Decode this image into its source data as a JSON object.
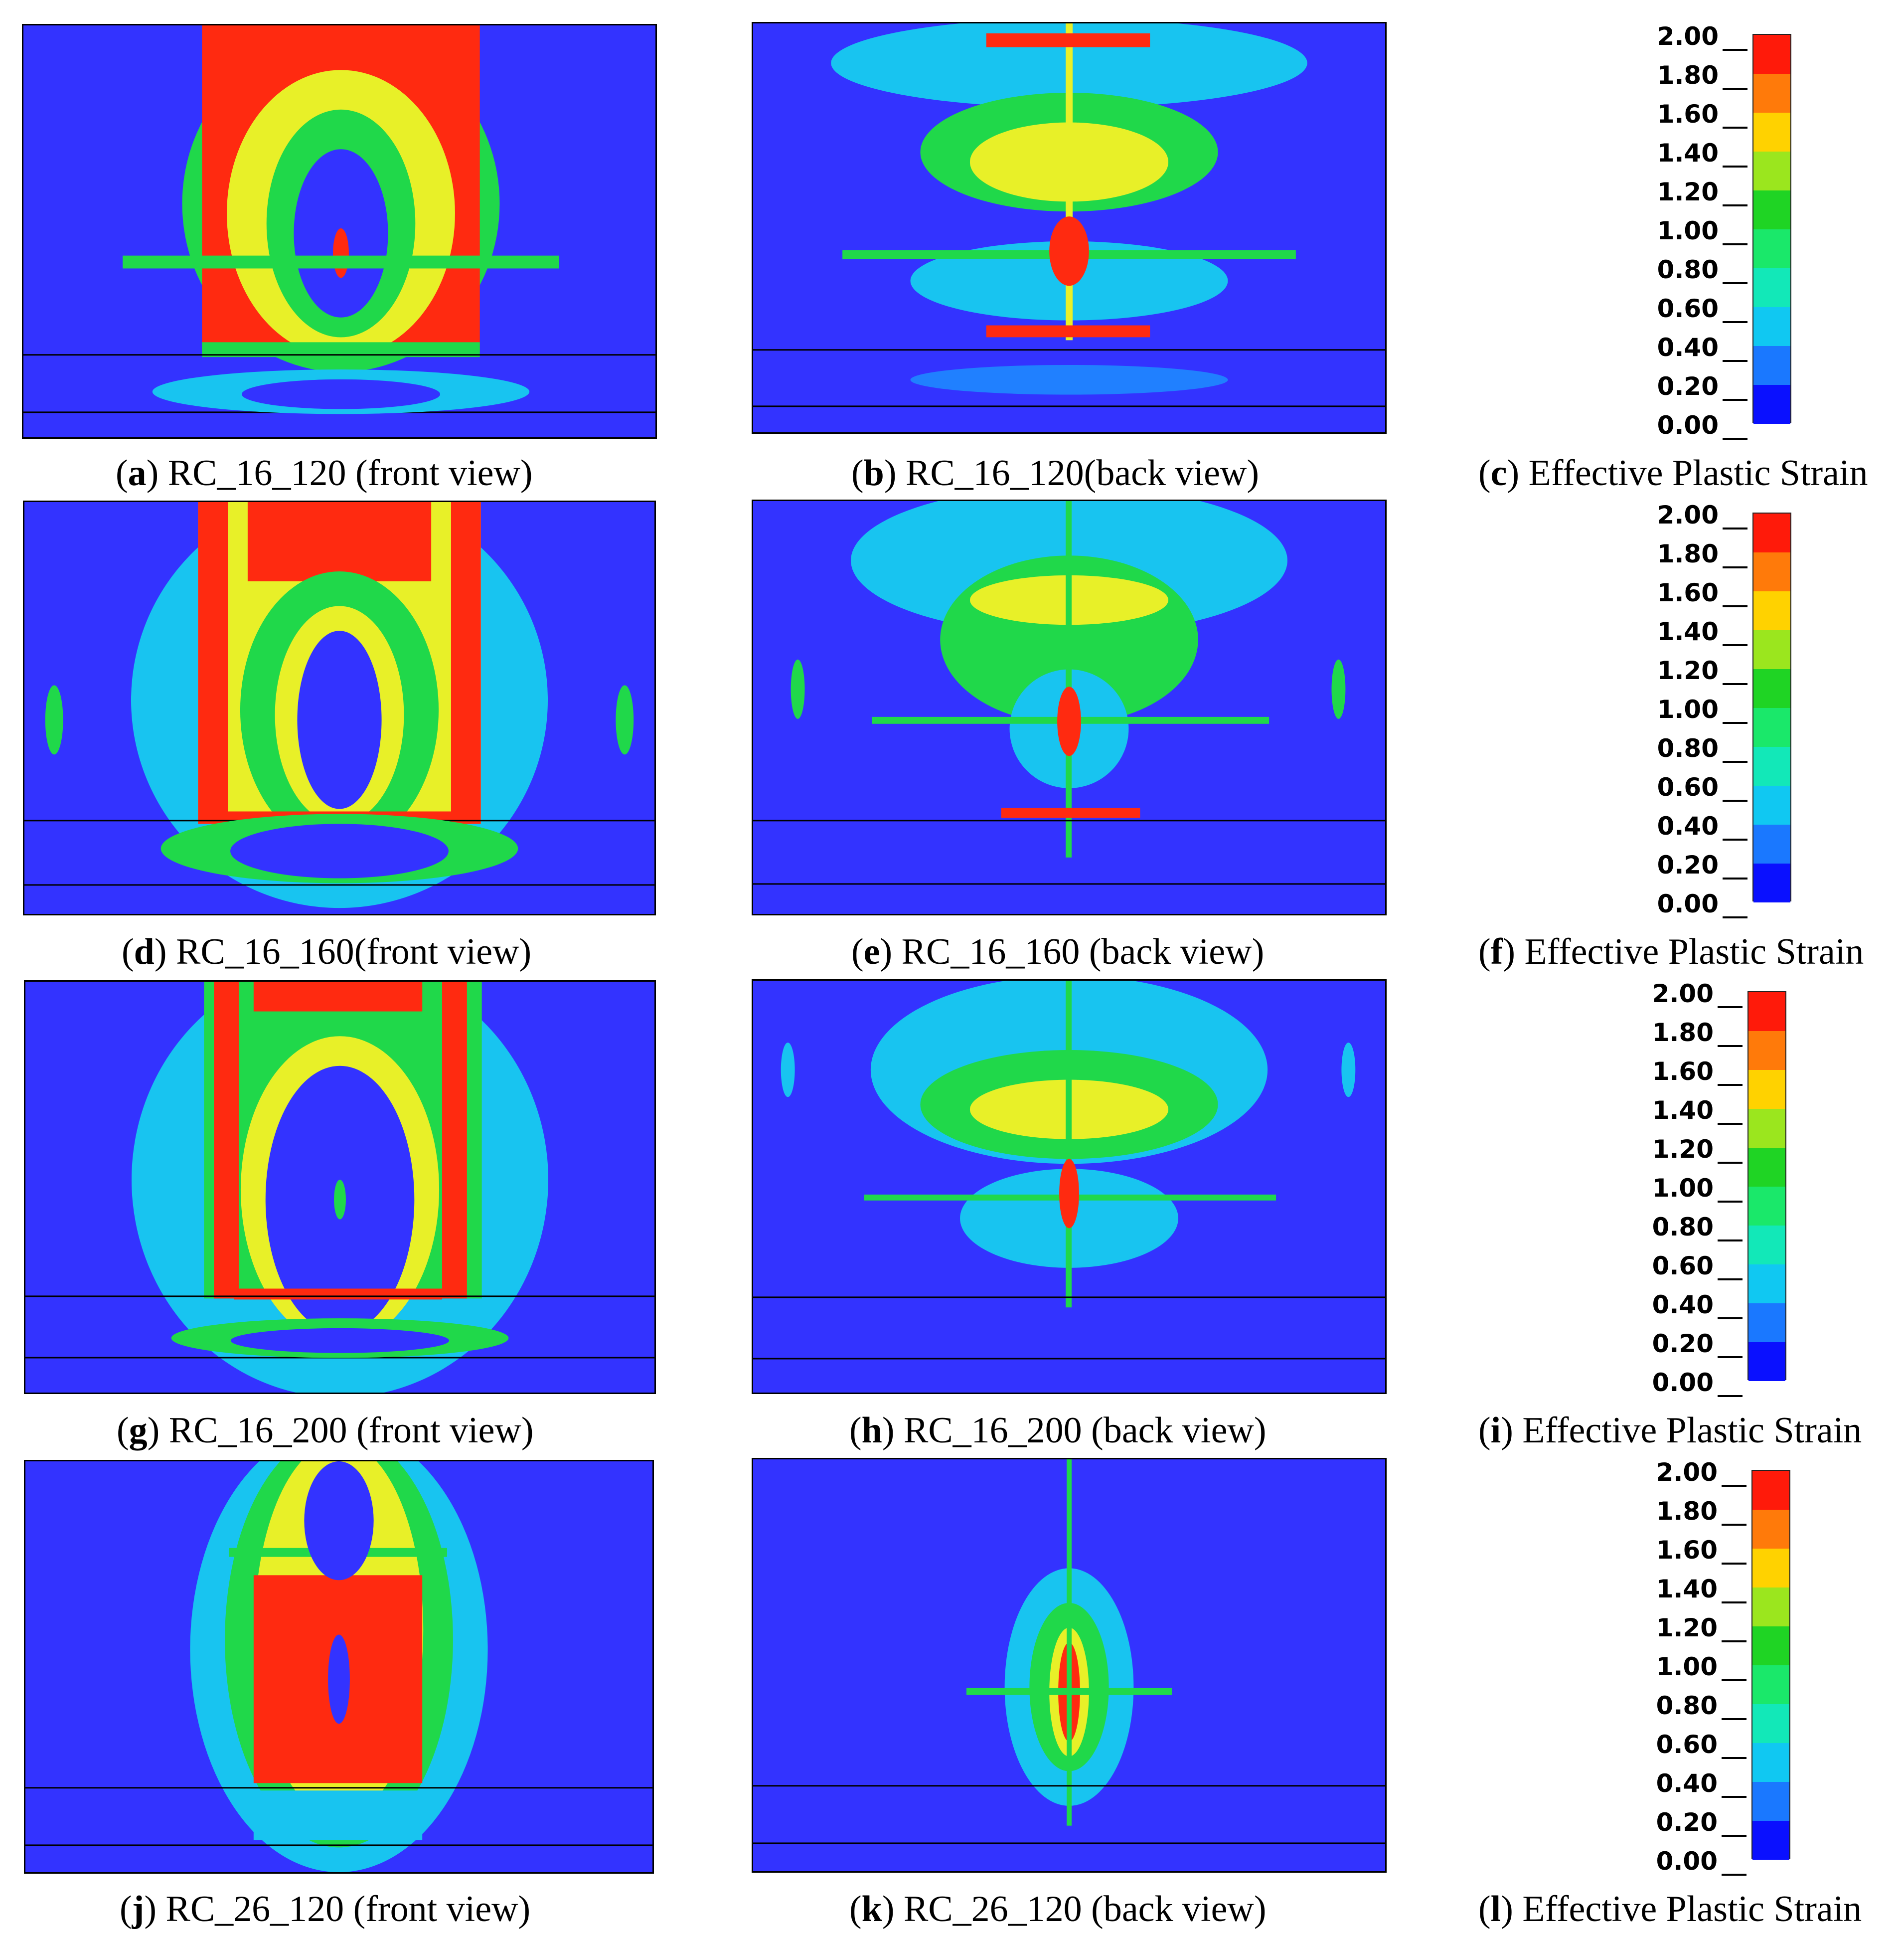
{
  "panels": [
    {
      "letter": "a",
      "caption": "RC_16_120 (front view)"
    },
    {
      "letter": "b",
      "caption": "RC_16_120(back view)"
    },
    {
      "letter": "c",
      "caption": "Effective Plastic Strain"
    },
    {
      "letter": "d",
      "caption": "RC_16_160(front view)"
    },
    {
      "letter": "e",
      "caption": "RC_16_160 (back view)"
    },
    {
      "letter": "f",
      "caption": "Effective Plastic Strain"
    },
    {
      "letter": "g",
      "caption": "RC_16_200 (front view)"
    },
    {
      "letter": "h",
      "caption": "RC_16_200 (back view)"
    },
    {
      "letter": "i",
      "caption": "Effective Plastic Strain"
    },
    {
      "letter": "j",
      "caption": "RC_26_120 (front view)"
    },
    {
      "letter": "k",
      "caption": "RC_26_120 (back view)"
    },
    {
      "letter": "l",
      "caption": "Effective Plastic Strain"
    }
  ],
  "legend": {
    "ticks": [
      "2.00",
      "1.80",
      "1.60",
      "1.40",
      "1.20",
      "1.00",
      "0.80",
      "0.60",
      "0.40",
      "0.20",
      "0.00"
    ],
    "colors": [
      "#ff1a0a",
      "#ff7a0a",
      "#ffd200",
      "#9be61e",
      "#1fd424",
      "#1ae86a",
      "#12e8b8",
      "#10c8f2",
      "#1a78ff",
      "#0a10ff"
    ]
  },
  "colors": {
    "background": "#3333ff",
    "strain_red": "#ff2a10",
    "strain_yellow": "#e8f028",
    "strain_green": "#20d84a",
    "strain_cyan": "#18c4f0",
    "strain_blue": "#2080ff"
  }
}
